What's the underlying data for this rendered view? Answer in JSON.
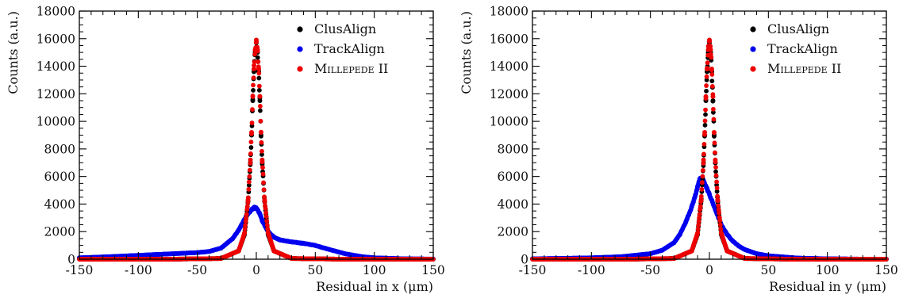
{
  "chart_data": [
    {
      "type": "scatter",
      "xlabel": "Residual in x (μm)",
      "ylabel": "Counts (a.u.)",
      "xlim": [
        -150,
        150
      ],
      "ylim": [
        0,
        18000
      ],
      "x_ticks": [
        "-150",
        "-100",
        "-50",
        "0",
        "50",
        "100",
        "150"
      ],
      "y_ticks": [
        "0",
        "2000",
        "4000",
        "6000",
        "8000",
        "10000",
        "12000",
        "14000",
        "16000",
        "18000"
      ],
      "legend_position": "top-right",
      "series": [
        {
          "name": "ClusAlign",
          "color": "#000000",
          "x": [
            -75,
            -30,
            -15,
            -10,
            -7,
            -5,
            -4,
            -3,
            -2,
            -1,
            0,
            1,
            2,
            3,
            4,
            5,
            7,
            10,
            15,
            30,
            75
          ],
          "y": [
            0,
            50,
            600,
            1800,
            4200,
            7000,
            9000,
            11500,
            13600,
            15000,
            15700,
            15000,
            13600,
            11500,
            9000,
            7000,
            4200,
            1800,
            600,
            50,
            0
          ]
        },
        {
          "name": "TrackAlign",
          "color": "#0000ee",
          "x": [
            -150,
            -125,
            -100,
            -75,
            -50,
            -40,
            -30,
            -20,
            -15,
            -10,
            -5,
            -2,
            0,
            3,
            5,
            10,
            15,
            20,
            30,
            40,
            50,
            60,
            75,
            90,
            100,
            125,
            150
          ],
          "y": [
            100,
            180,
            280,
            380,
            480,
            560,
            800,
            1500,
            2100,
            2900,
            3500,
            3750,
            3700,
            3300,
            2800,
            2000,
            1600,
            1400,
            1250,
            1150,
            1000,
            750,
            400,
            180,
            100,
            30,
            10
          ]
        },
        {
          "name": "Millepede II",
          "color": "#ee0000",
          "x": [
            -75,
            -30,
            -15,
            -10,
            -7,
            -5,
            -4,
            -3,
            -2,
            -1,
            0,
            1,
            2,
            3,
            4,
            5,
            7,
            10,
            15,
            30,
            75
          ],
          "y": [
            0,
            50,
            600,
            1900,
            4300,
            7200,
            9200,
            11800,
            13800,
            15200,
            15900,
            15200,
            13800,
            11800,
            9200,
            7200,
            4300,
            1900,
            600,
            50,
            0
          ]
        }
      ]
    },
    {
      "type": "scatter",
      "xlabel": "Residual in y (μm)",
      "ylabel": "Counts (a.u.)",
      "xlim": [
        -150,
        150
      ],
      "ylim": [
        0,
        18000
      ],
      "x_ticks": [
        "-150",
        "-100",
        "-50",
        "0",
        "50",
        "100",
        "150"
      ],
      "y_ticks": [
        "0",
        "2000",
        "4000",
        "6000",
        "8000",
        "10000",
        "12000",
        "14000",
        "16000",
        "18000"
      ],
      "legend_position": "top-right",
      "series": [
        {
          "name": "ClusAlign",
          "color": "#000000",
          "x": [
            -70,
            -30,
            -15,
            -10,
            -7,
            -5,
            -4,
            -3,
            -2,
            -1,
            0,
            1,
            2,
            3,
            4,
            5,
            7,
            10,
            15,
            30,
            70
          ],
          "y": [
            0,
            50,
            600,
            1800,
            4200,
            7000,
            9000,
            11500,
            13600,
            15000,
            15700,
            15000,
            13600,
            11500,
            9000,
            7000,
            4200,
            1800,
            600,
            50,
            0
          ]
        },
        {
          "name": "TrackAlign",
          "color": "#0000ee",
          "x": [
            -150,
            -125,
            -100,
            -75,
            -50,
            -40,
            -30,
            -25,
            -20,
            -15,
            -12,
            -10,
            -8,
            -6,
            -4,
            -2,
            0,
            5,
            10,
            15,
            20,
            25,
            30,
            40,
            50,
            75,
            100,
            125,
            150
          ],
          "y": [
            30,
            60,
            100,
            180,
            400,
            650,
            1200,
            1800,
            2700,
            3800,
            4600,
            5300,
            5800,
            5850,
            5500,
            5100,
            4700,
            3600,
            2500,
            1800,
            1300,
            950,
            700,
            400,
            250,
            80,
            30,
            10,
            0
          ]
        },
        {
          "name": "Millepede II",
          "color": "#ee0000",
          "x": [
            -70,
            -30,
            -15,
            -10,
            -7,
            -5,
            -4,
            -3,
            -2,
            -1,
            0,
            1,
            2,
            3,
            4,
            5,
            7,
            10,
            15,
            30,
            70
          ],
          "y": [
            0,
            50,
            600,
            1900,
            4300,
            7200,
            9200,
            11800,
            13800,
            15200,
            15900,
            15200,
            13800,
            11800,
            9200,
            7200,
            4300,
            1900,
            600,
            50,
            0
          ]
        }
      ]
    }
  ]
}
